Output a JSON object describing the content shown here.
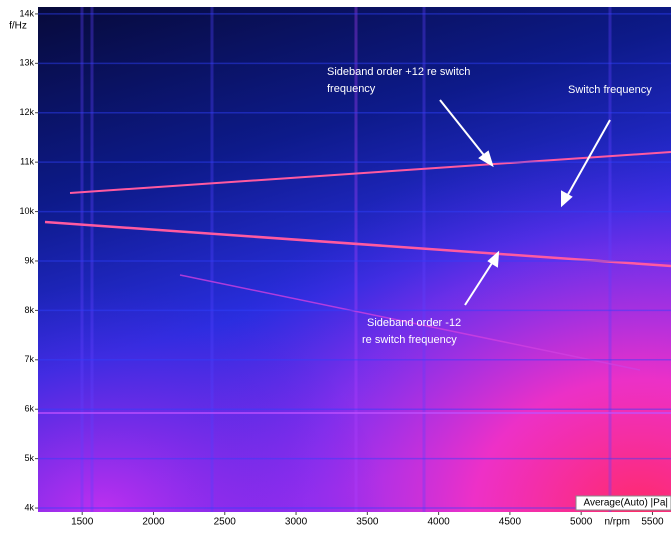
{
  "chart_data": {
    "type": "spectrogram",
    "x_label": "n/rpm",
    "y_label": "f/Hz",
    "xlim": [
      1190,
      5630
    ],
    "xticks": [
      1500,
      2000,
      2500,
      3000,
      3500,
      4000,
      4500,
      5000,
      5500
    ],
    "ylim": [
      3920,
      14140
    ],
    "yticks": [
      {
        "value": 4000,
        "label": "4k"
      },
      {
        "value": 5000,
        "label": "5k"
      },
      {
        "value": 6000,
        "label": "6k"
      },
      {
        "value": 7000,
        "label": "7k"
      },
      {
        "value": 8000,
        "label": "8k"
      },
      {
        "value": 9000,
        "label": "9k"
      },
      {
        "value": 10000,
        "label": "10k"
      },
      {
        "value": 11000,
        "label": "11k"
      },
      {
        "value": 12000,
        "label": "12k"
      },
      {
        "value": 13000,
        "label": "13k"
      },
      {
        "value": 14000,
        "label": "14k"
      }
    ],
    "grid": true,
    "colorbar_label": "Average(Auto) |Pa|",
    "annotations": [
      [
        "Sideband order +12 re switch",
        "frequency"
      ],
      [
        "Switch frequency"
      ],
      [
        "Sideband order  -12",
        "re switch frequency"
      ]
    ]
  }
}
